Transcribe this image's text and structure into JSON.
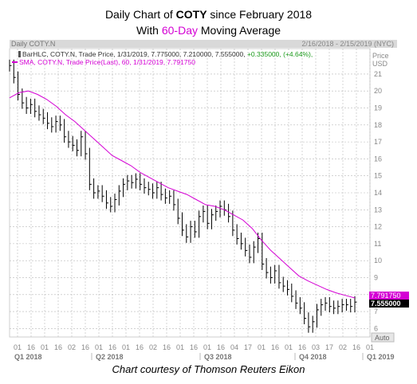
{
  "title": {
    "line1_prefix": "Daily Chart of ",
    "line1_ticker": "COTY",
    "line1_suffix": " since February 2018",
    "line2_prefix": "With ",
    "line2_accent": "60-Day",
    "line2_suffix": " Moving Average"
  },
  "header": {
    "instrument": "Daily COTY.N",
    "date_range": "2/16/2018 - 2/15/2019 (NYC)",
    "price_label": "Price",
    "currency": "USD"
  },
  "legend": {
    "bar_label": "BarHLC, COTY.N, Trade Price, 1/31/2019, 7.775000, 7.210000, 7.555000,",
    "bar_change": "+0.335000, (+4.64%),",
    "sma_label": "SMA, COTY.N, Trade Price(Last), 60, 1/31/2019, 7.791750"
  },
  "badges": {
    "sma_value": "7.791750",
    "last_value": "7.555000"
  },
  "auto_button": "Auto",
  "footer": "Chart courtesy of Thomson Reuters Eikon",
  "colors": {
    "bars": "#000000",
    "sma": "#d400d4",
    "grid": "#b8b8b8",
    "axis_text": "#888888",
    "sma_badge": "#d400d4",
    "last_badge": "#000000"
  },
  "chart_data": {
    "type": "line",
    "ylim": [
      5.5,
      22.5
    ],
    "y_ticks": [
      6,
      7,
      8,
      9,
      10,
      11,
      12,
      13,
      14,
      15,
      16,
      17,
      18,
      19,
      20,
      21
    ],
    "x_tick_labels": [
      "01",
      "16",
      "01",
      "16",
      "02",
      "16",
      "01",
      "16",
      "01",
      "16",
      "02",
      "16",
      "01",
      "16",
      "01",
      "16",
      "04",
      "17",
      "01",
      "16",
      "01",
      "16",
      "03",
      "17",
      "02",
      "16",
      "01"
    ],
    "quarters": [
      "Q1 2018",
      "Q2 2018",
      "Q3 2018",
      "Q4 2018",
      "Q1 2019"
    ],
    "series": [
      {
        "kind": "bar_hlc",
        "close": [
          21.5,
          20.8,
          19.8,
          19.3,
          19.0,
          19.2,
          18.8,
          18.6,
          18.4,
          18.1,
          17.9,
          18.2,
          18.0,
          17.3,
          17.0,
          16.8,
          16.5,
          17.3,
          16.3,
          14.5,
          14.0,
          14.1,
          13.8,
          13.4,
          13.2,
          13.6,
          14.1,
          14.5,
          14.7,
          14.6,
          14.8,
          14.5,
          14.3,
          14.2,
          14.0,
          14.3,
          13.9,
          13.7,
          13.8,
          13.3,
          12.5,
          11.8,
          11.4,
          12.0,
          11.7,
          12.6,
          12.9,
          12.2,
          12.7,
          12.9,
          13.2,
          13.0,
          12.6,
          11.8,
          11.3,
          11.0,
          10.6,
          10.2,
          10.8,
          11.3,
          9.8,
          9.3,
          9.0,
          9.4,
          8.7,
          8.5,
          8.3,
          7.9,
          7.5,
          7.2,
          6.6,
          6.1,
          6.4,
          7.1,
          7.4,
          7.5,
          7.3,
          7.2,
          7.3,
          7.4,
          7.4,
          7.3,
          7.555
        ]
      },
      {
        "kind": "sma",
        "values": [
          19.6,
          19.9,
          20.0,
          19.8,
          19.5,
          19.1,
          18.6,
          18.2,
          17.7,
          17.2,
          16.7,
          16.2,
          15.9,
          15.6,
          15.2,
          14.9,
          14.6,
          14.3,
          14.1,
          13.9,
          13.6,
          13.3,
          13.2,
          13.0,
          12.7,
          12.4,
          11.9,
          11.2,
          10.6,
          10.1,
          9.6,
          9.1,
          8.8,
          8.55,
          8.3,
          8.1,
          7.95,
          7.8
        ]
      }
    ]
  }
}
